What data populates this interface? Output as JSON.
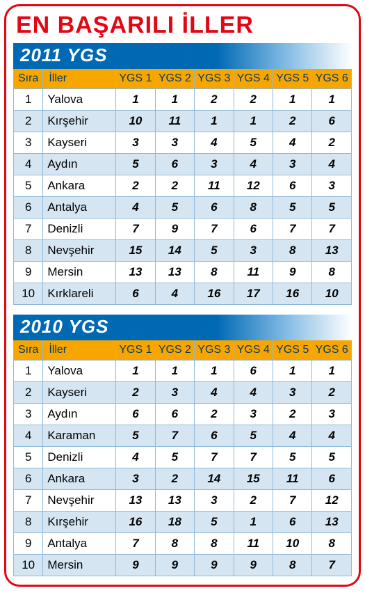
{
  "title": "EN BAŞARILI İLLER",
  "columns": {
    "sira": "Sıra",
    "iller": "İller",
    "ygs": [
      "YGS 1",
      "YGS 2",
      "YGS 3",
      "YGS 4",
      "YGS 5",
      "YGS 6"
    ]
  },
  "colors": {
    "border": "#e30613",
    "title": "#e30613",
    "year_bar_start": "#0069b4",
    "header_bg": "#f7a600",
    "header_text": "#003a70",
    "row_alt_bg": "#d5e6f2",
    "cell_border": "#8fb9d9"
  },
  "sections": [
    {
      "year_label": "2011 YGS",
      "rows": [
        {
          "sira": 1,
          "il": "Yalova",
          "v": [
            1,
            1,
            2,
            2,
            1,
            1
          ]
        },
        {
          "sira": 2,
          "il": "Kırşehir",
          "v": [
            10,
            11,
            1,
            1,
            2,
            6
          ]
        },
        {
          "sira": 3,
          "il": "Kayseri",
          "v": [
            3,
            3,
            4,
            5,
            4,
            2
          ]
        },
        {
          "sira": 4,
          "il": "Aydın",
          "v": [
            5,
            6,
            3,
            4,
            3,
            4
          ]
        },
        {
          "sira": 5,
          "il": "Ankara",
          "v": [
            2,
            2,
            11,
            12,
            6,
            3
          ]
        },
        {
          "sira": 6,
          "il": "Antalya",
          "v": [
            4,
            5,
            6,
            8,
            5,
            5
          ]
        },
        {
          "sira": 7,
          "il": "Denizli",
          "v": [
            7,
            9,
            7,
            6,
            7,
            7
          ]
        },
        {
          "sira": 8,
          "il": "Nevşehir",
          "v": [
            15,
            14,
            5,
            3,
            8,
            13
          ]
        },
        {
          "sira": 9,
          "il": "Mersin",
          "v": [
            13,
            13,
            8,
            11,
            9,
            8
          ]
        },
        {
          "sira": 10,
          "il": "Kırklareli",
          "v": [
            6,
            4,
            16,
            17,
            16,
            10
          ]
        }
      ]
    },
    {
      "year_label": "2010 YGS",
      "rows": [
        {
          "sira": 1,
          "il": "Yalova",
          "v": [
            1,
            1,
            1,
            6,
            1,
            1
          ]
        },
        {
          "sira": 2,
          "il": "Kayseri",
          "v": [
            2,
            3,
            4,
            4,
            3,
            2
          ]
        },
        {
          "sira": 3,
          "il": "Aydın",
          "v": [
            6,
            6,
            2,
            3,
            2,
            3
          ]
        },
        {
          "sira": 4,
          "il": "Karaman",
          "v": [
            5,
            7,
            6,
            5,
            4,
            4
          ]
        },
        {
          "sira": 5,
          "il": "Denizli",
          "v": [
            4,
            5,
            7,
            7,
            5,
            5
          ]
        },
        {
          "sira": 6,
          "il": "Ankara",
          "v": [
            3,
            2,
            14,
            15,
            11,
            6
          ]
        },
        {
          "sira": 7,
          "il": "Nevşehir",
          "v": [
            13,
            13,
            3,
            2,
            7,
            12
          ]
        },
        {
          "sira": 8,
          "il": "Kırşehir",
          "v": [
            16,
            18,
            5,
            1,
            6,
            13
          ]
        },
        {
          "sira": 9,
          "il": "Antalya",
          "v": [
            7,
            8,
            8,
            11,
            10,
            8
          ]
        },
        {
          "sira": 10,
          "il": "Mersin",
          "v": [
            9,
            9,
            9,
            9,
            8,
            7
          ]
        }
      ]
    }
  ]
}
